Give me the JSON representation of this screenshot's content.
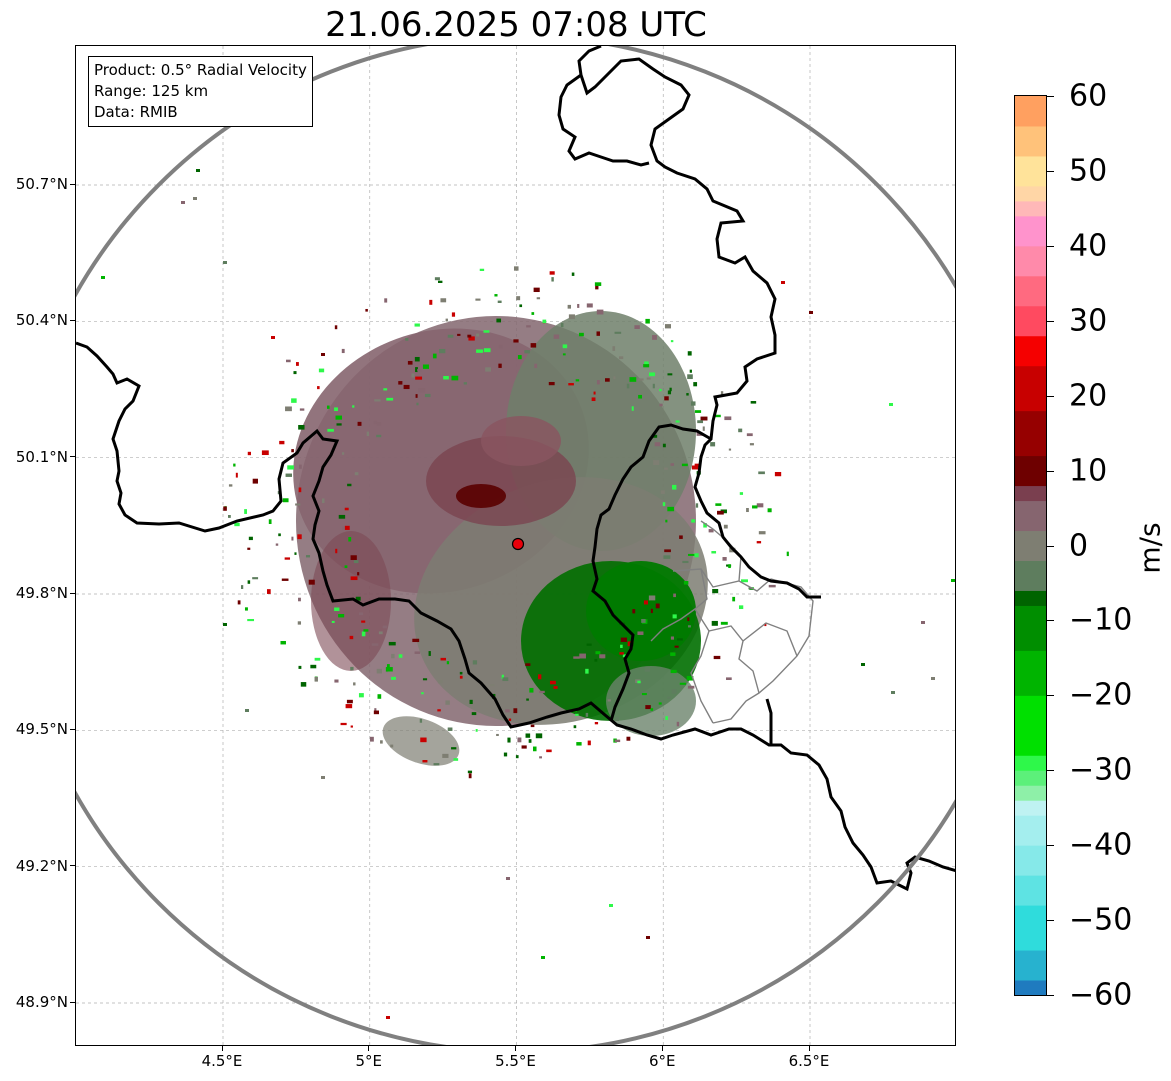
{
  "title": "21.06.2025 07:08 UTC",
  "info_box": {
    "product": "Product: 0.5° Radial Velocity",
    "range": "Range: 125 km",
    "data_source": "Data: RMIB"
  },
  "map": {
    "lon_range": [
      4.0,
      7.0
    ],
    "lat_range": [
      48.8,
      51.0
    ],
    "radar_site": {
      "lon": 5.505,
      "lat": 49.914
    },
    "range_ring_color": "#808080",
    "border_color": "#000000",
    "admin_border_color": "#808080",
    "grid": true,
    "x_ticks": [
      "4.5°E",
      "5°E",
      "5.5°E",
      "6°E",
      "6.5°E"
    ],
    "x_tick_values": [
      4.5,
      5.0,
      5.5,
      6.0,
      6.5
    ],
    "y_ticks": [
      "50.7°N",
      "50.4°N",
      "50.1°N",
      "49.8°N",
      "49.5°N",
      "49.2°N",
      "48.9°N"
    ],
    "y_tick_values": [
      50.7,
      50.4,
      50.1,
      49.8,
      49.5,
      49.2,
      48.9
    ]
  },
  "colorbar": {
    "label": "m/s",
    "min": -60,
    "max": 60,
    "ticks": [
      "60",
      "50",
      "40",
      "30",
      "20",
      "10",
      "0",
      "−10",
      "−20",
      "−30",
      "−40",
      "−50",
      "−60"
    ],
    "tick_values": [
      60,
      50,
      40,
      30,
      20,
      10,
      0,
      -10,
      -20,
      -30,
      -40,
      -50,
      -60
    ],
    "color_stops": [
      {
        "from": -60,
        "to": -58,
        "color": "#1f7bbf"
      },
      {
        "from": -58,
        "to": -54,
        "color": "#27b2cf"
      },
      {
        "from": -54,
        "to": -48,
        "color": "#2fdcdc"
      },
      {
        "from": -48,
        "to": -44,
        "color": "#5ee3e3"
      },
      {
        "from": -44,
        "to": -40,
        "color": "#86e9e9"
      },
      {
        "from": -40,
        "to": -36,
        "color": "#a4eeee"
      },
      {
        "from": -36,
        "to": -34,
        "color": "#bff2f2"
      },
      {
        "from": -34,
        "to": -32,
        "color": "#8ef0a8"
      },
      {
        "from": -32,
        "to": -30,
        "color": "#5cf07a"
      },
      {
        "from": -30,
        "to": -28,
        "color": "#2ef84a"
      },
      {
        "from": -28,
        "to": -20,
        "color": "#00e000"
      },
      {
        "from": -20,
        "to": -14,
        "color": "#00b400"
      },
      {
        "from": -14,
        "to": -8,
        "color": "#008e00"
      },
      {
        "from": -8,
        "to": -6,
        "color": "#006400"
      },
      {
        "from": -6,
        "to": -2,
        "color": "#5e7d5e"
      },
      {
        "from": -2,
        "to": 2,
        "color": "#7e7e72"
      },
      {
        "from": 2,
        "to": 6,
        "color": "#86656f"
      },
      {
        "from": 6,
        "to": 8,
        "color": "#7a3f4f"
      },
      {
        "from": 8,
        "to": 12,
        "color": "#6e0000"
      },
      {
        "from": 12,
        "to": 18,
        "color": "#960000"
      },
      {
        "from": 18,
        "to": 24,
        "color": "#c80000"
      },
      {
        "from": 24,
        "to": 28,
        "color": "#f50000"
      },
      {
        "from": 28,
        "to": 32,
        "color": "#ff4a60"
      },
      {
        "from": 32,
        "to": 36,
        "color": "#ff6a80"
      },
      {
        "from": 36,
        "to": 40,
        "color": "#ff8aaa"
      },
      {
        "from": 40,
        "to": 44,
        "color": "#ff93cc"
      },
      {
        "from": 44,
        "to": 46,
        "color": "#ffb8b8"
      },
      {
        "from": 46,
        "to": 48,
        "color": "#ffd6a6"
      },
      {
        "from": 48,
        "to": 52,
        "color": "#ffe39a"
      },
      {
        "from": 52,
        "to": 56,
        "color": "#ffc27a"
      },
      {
        "from": 56,
        "to": 60,
        "color": "#ffa060"
      }
    ]
  }
}
